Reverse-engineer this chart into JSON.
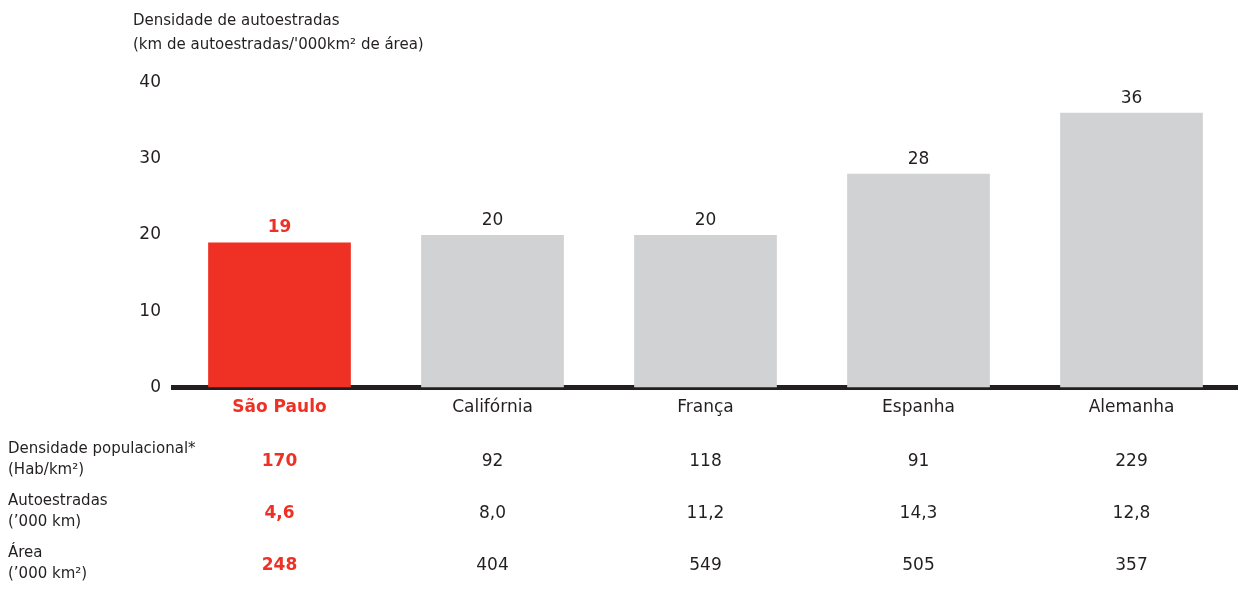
{
  "chart_data": {
    "type": "bar",
    "ylabel": "Densidade de autoestradas\n(km de autoestradas/'000km² de área)",
    "categories": [
      "São Paulo",
      "Califórnia",
      "França",
      "Espanha",
      "Alemanha"
    ],
    "values": [
      19,
      20,
      20,
      28,
      36
    ],
    "colors": [
      "#ee3124",
      "#d1d2d4",
      "#d1d2d4",
      "#d1d2d4",
      "#d1d2d4"
    ],
    "ylim": [
      0,
      40
    ],
    "yticks": [
      0,
      10,
      20,
      30,
      40
    ],
    "grid": false,
    "legend": false,
    "data_labels": true,
    "annotations": [
      "Densidade populacional*\n(Hab/km²)",
      "170",
      "92",
      "118",
      "91",
      "229",
      "Autoestradas\n(’000 km)",
      "4,6",
      "8,0",
      "11,2",
      "14,3",
      "12,8",
      "Área\n(’000 km²)",
      "248",
      "404",
      "549",
      "505",
      "357"
    ]
  }
}
